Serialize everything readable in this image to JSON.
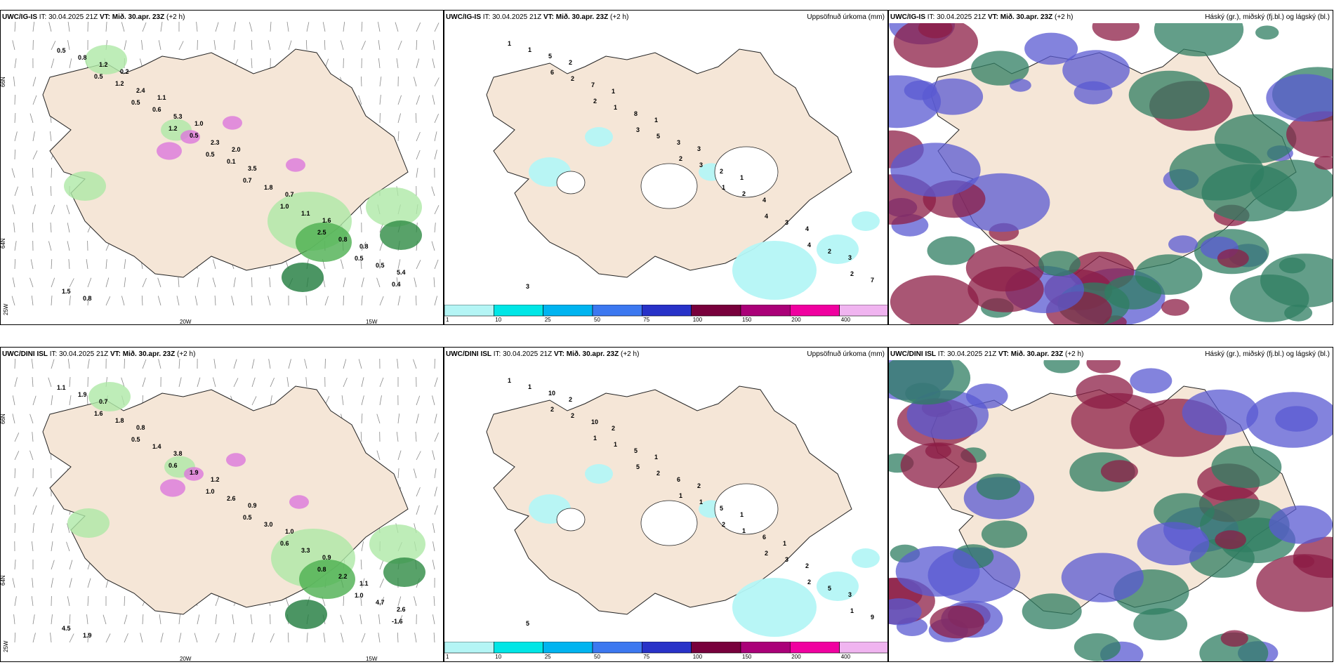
{
  "panels": [
    {
      "model": "UWC/IG-IS",
      "it": "IT: 30.04.2025 21Z",
      "vt_label": "VT:",
      "vt": "Mið. 30.apr. 23Z",
      "lead": "(+2 h)",
      "title": "",
      "values": [
        "0.5",
        "0.5",
        "0.5",
        "1.2",
        "0.5",
        "0.7",
        "1.0",
        "2.5",
        "0.5",
        "0.4",
        "0.8",
        "1.2",
        "0.6",
        "0.5",
        "0.1",
        "1.8",
        "1.1",
        "0.8",
        "0.5",
        "1.5",
        "1.2",
        "2.4",
        "5.3",
        "2.3",
        "3.5",
        "0.7",
        "1.6",
        "0.8",
        "5.4",
        "0.8",
        "0.2",
        "1.1",
        "1.0",
        "2.0"
      ],
      "labels": [
        "66N",
        "65N",
        "64N",
        "25W",
        "20W",
        "15W"
      ]
    },
    {
      "model": "UWC/IG-IS",
      "it": "IT: 30.04.2025 21Z",
      "vt_label": "VT:",
      "vt": "Mið. 30.apr. 23Z",
      "lead": "(+2 h)",
      "title": "Uppsöfnuð úrkoma (mm)",
      "values": [
        "1",
        "6",
        "2",
        "3",
        "2",
        "1",
        "4",
        "4",
        "2",
        "1",
        "2",
        "1",
        "5",
        "3",
        "2",
        "3",
        "2",
        "7",
        "5",
        "7",
        "8",
        "3",
        "2",
        "4",
        "4",
        "3",
        "3",
        "2",
        "1",
        "1",
        "3",
        "1"
      ]
    },
    {
      "model": "UWC/IG-IS",
      "it": "IT: 30.04.2025 21Z",
      "vt_label": "VT:",
      "vt": "Mið. 30.apr. 23Z",
      "lead": "(+2 h)",
      "title": "Háský (gr.), miðský (fj.bl.) og lágský (bl.)"
    },
    {
      "model": "UWC/DINI ISL",
      "it": "IT: 30.04.2025 21Z",
      "vt_label": "VT:",
      "vt": "Mið. 30.apr. 23Z",
      "lead": "(+2 h)",
      "title": "",
      "values": [
        "1.1",
        "1.6",
        "0.5",
        "0.6",
        "1.0",
        "0.5",
        "0.6",
        "0.8",
        "1.0",
        "-1.6",
        "1.9",
        "1.8",
        "1.4",
        "1.9",
        "2.6",
        "3.0",
        "3.3",
        "2.2",
        "4.7",
        "4.5",
        "0.7",
        "0.8",
        "3.8",
        "1.2",
        "0.9",
        "1.0",
        "0.9",
        "1.1",
        "2.6",
        "1.9"
      ],
      "labels": [
        "66N",
        "65N",
        "64N",
        "25W",
        "20W",
        "15W"
      ]
    },
    {
      "model": "UWC/DINI ISL",
      "it": "IT: 30.04.2025 21Z",
      "vt_label": "VT:",
      "vt": "Mið. 30.apr. 23Z",
      "lead": "(+2 h)",
      "title": "Uppsöfnuð úrkoma (mm)",
      "values": [
        "1",
        "2",
        "1",
        "5",
        "1",
        "2",
        "2",
        "2",
        "1",
        "1",
        "2",
        "1",
        "2",
        "1",
        "1",
        "3",
        "5",
        "9",
        "10",
        "10",
        "5",
        "6",
        "5",
        "6",
        "2",
        "3",
        "5",
        "2",
        "2",
        "1",
        "2",
        "1",
        "1"
      ]
    },
    {
      "model": "UWC/DINI ISL",
      "it": "IT: 30.04.2025 21Z",
      "vt_label": "VT:",
      "vt": "Mið. 30.apr. 23Z",
      "lead": "(+2 h)",
      "title": "Háský (gr.), miðský (fj.bl.) og lágský (bl.)"
    }
  ],
  "legend": {
    "ticks": [
      "1",
      "10",
      "25",
      "50",
      "75",
      "100",
      "150",
      "200",
      "400"
    ],
    "colors": [
      "#b4f5f5",
      "#00e6e6",
      "#00b4f0",
      "#3c78f0",
      "#2832c8",
      "#78003c",
      "#aa0078",
      "#f000a0",
      "#f0b4f0"
    ]
  },
  "colors": {
    "land": "#f5e6d7",
    "green_light": "#aee8a6",
    "green_dark": "#1e7a3c",
    "magenta": "#dc78dc",
    "cloud_high": "#2f7d62",
    "cloud_mid": "#8c1e46",
    "cloud_low": "#5a5ad2"
  }
}
